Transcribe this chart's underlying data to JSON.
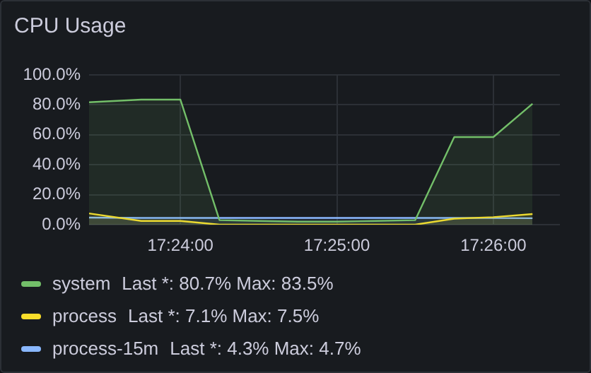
{
  "chart_data": {
    "type": "area",
    "title": "CPU Usage",
    "x": [
      17.390278,
      17.395833,
      17.4,
      17.404167,
      17.408333,
      17.4125,
      17.416667,
      17.420833,
      17.425,
      17.429167,
      17.433333,
      17.4375
    ],
    "series": [
      {
        "name": "system",
        "color": "#73bf69",
        "values": [
          81.7,
          83.5,
          83.5,
          3,
          2.5,
          2,
          2,
          2.5,
          3,
          58.5,
          58.5,
          80.7
        ]
      },
      {
        "name": "process",
        "color": "#fade2a",
        "values": [
          7.5,
          2.5,
          2.5,
          0,
          0,
          0,
          0,
          0,
          0,
          4,
          5,
          7.1
        ]
      },
      {
        "name": "process-15m",
        "color": "#8ab8ff",
        "values": [
          4.7,
          4.5,
          4.5,
          4.5,
          4.5,
          4.5,
          4.5,
          4.5,
          4.5,
          4.5,
          4.4,
          4.3
        ]
      }
    ],
    "annotations": [
      "Last *: 80.7%  Max: 83.5%",
      "Last *: 7.1%  Max: 7.5%",
      "Last *: 4.3%  Max: 4.7%"
    ],
    "xlim": [
      17.390278,
      17.440417
    ],
    "xticks": [
      {
        "value": 17.4,
        "label": "17:24:00"
      },
      {
        "value": 17.416667,
        "label": "17:25:00"
      },
      {
        "value": 17.433333,
        "label": "17:26:00"
      }
    ],
    "ylim": [
      0,
      100
    ],
    "yticks": [
      {
        "value": 0,
        "label": "0.0%"
      },
      {
        "value": 20,
        "label": "20.0%"
      },
      {
        "value": 40,
        "label": "40.0%"
      },
      {
        "value": 60,
        "label": "60.0%"
      },
      {
        "value": 80,
        "label": "80.0%"
      },
      {
        "value": 100,
        "label": "100.0%"
      }
    ],
    "grid": true,
    "legend": "bottom",
    "marker": "none",
    "line_style": "solid"
  }
}
